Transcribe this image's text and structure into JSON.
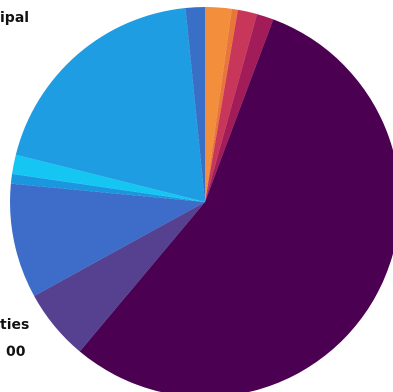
{
  "chart_data": {
    "type": "pie",
    "title": "",
    "slices": [
      {
        "value": 2.2,
        "color": "#f28e3c"
      },
      {
        "value": 0.5,
        "color": "#e8763a"
      },
      {
        "value": 1.6,
        "color": "#c8365a"
      },
      {
        "value": 1.4,
        "color": "#a31c5a"
      },
      {
        "value": 55.4,
        "color": "#4b0052"
      },
      {
        "value": 5.9,
        "color": "#55418f"
      },
      {
        "value": 9.5,
        "color": "#3d6cc9"
      },
      {
        "value": 0.8,
        "color": "#1b97e0"
      },
      {
        "value": 1.6,
        "color": "#16c6f2"
      },
      {
        "value": 19.5,
        "color": "#1f9de2"
      },
      {
        "value": 1.6,
        "color": "#3a6fc7"
      }
    ],
    "labels": [
      {
        "text": "ipal"
      },
      {
        "text": "ties"
      },
      {
        "text": "00"
      }
    ]
  }
}
